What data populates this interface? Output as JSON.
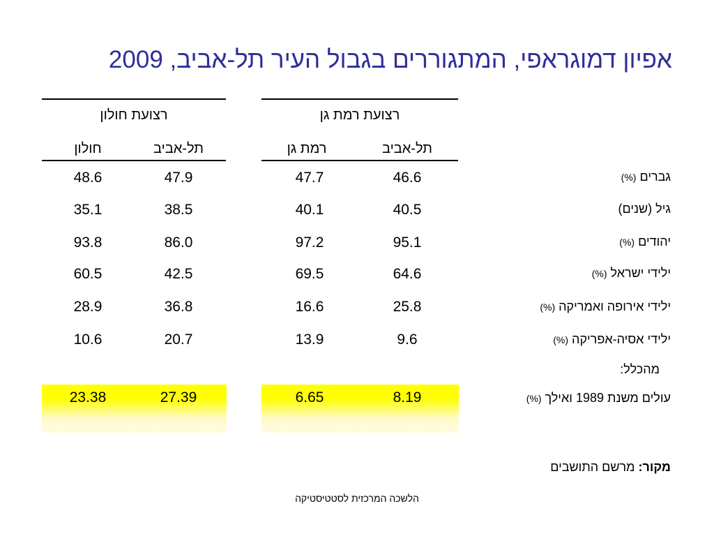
{
  "title": {
    "text": "אפיון דמוגראפי, המתגוררים בגבול העיר תל-אביב,",
    "year": "2009"
  },
  "groups": [
    {
      "name": "רצועת חולון",
      "columns": [
        "תל-אביב",
        "חולון"
      ]
    },
    {
      "name": "רצועת רמת גן",
      "columns": [
        "תל-אביב",
        "רמת גן"
      ]
    }
  ],
  "rows": [
    {
      "label": "גברים",
      "unit": "(%)",
      "holon_ta": "47.9",
      "holon": "48.6",
      "rg_ta": "46.6",
      "rg": "47.7"
    },
    {
      "label": "גיל",
      "unit": "(שנים)",
      "holon_ta": "38.5",
      "holon": "35.1",
      "rg_ta": "40.5",
      "rg": "40.1"
    },
    {
      "label": "יהודים",
      "unit": "(%)",
      "holon_ta": "86.0",
      "holon": "93.8",
      "rg_ta": "95.1",
      "rg": "97.2"
    },
    {
      "label": "ילידי ישראל",
      "unit": "(%)",
      "holon_ta": "42.5",
      "holon": "60.5",
      "rg_ta": "64.6",
      "rg": "69.5"
    },
    {
      "label": "ילידי אירופה ואמריקה",
      "unit": "(%)",
      "holon_ta": "36.8",
      "holon": "28.9",
      "rg_ta": "25.8",
      "rg": "16.6"
    },
    {
      "label": "ילידי אסיה-אפריקה",
      "unit": "(%)",
      "holon_ta": "20.7",
      "holon": "10.6",
      "rg_ta": "9.6",
      "rg": "13.9"
    }
  ],
  "subheader": "מהכלל:",
  "highlight_row": {
    "label": "עולים משנת 1989 ואילך",
    "unit": "(%)",
    "holon_ta": "27.39",
    "holon": "23.38",
    "rg_ta": "8.19",
    "rg": "6.65"
  },
  "source": {
    "label": "מקור:",
    "text": "מרשם התושבים"
  },
  "footer": "הלשכה המרכזית לסטטיסטיקה",
  "colors": {
    "title": "#2e2e9a",
    "highlight": "#ffff00"
  }
}
